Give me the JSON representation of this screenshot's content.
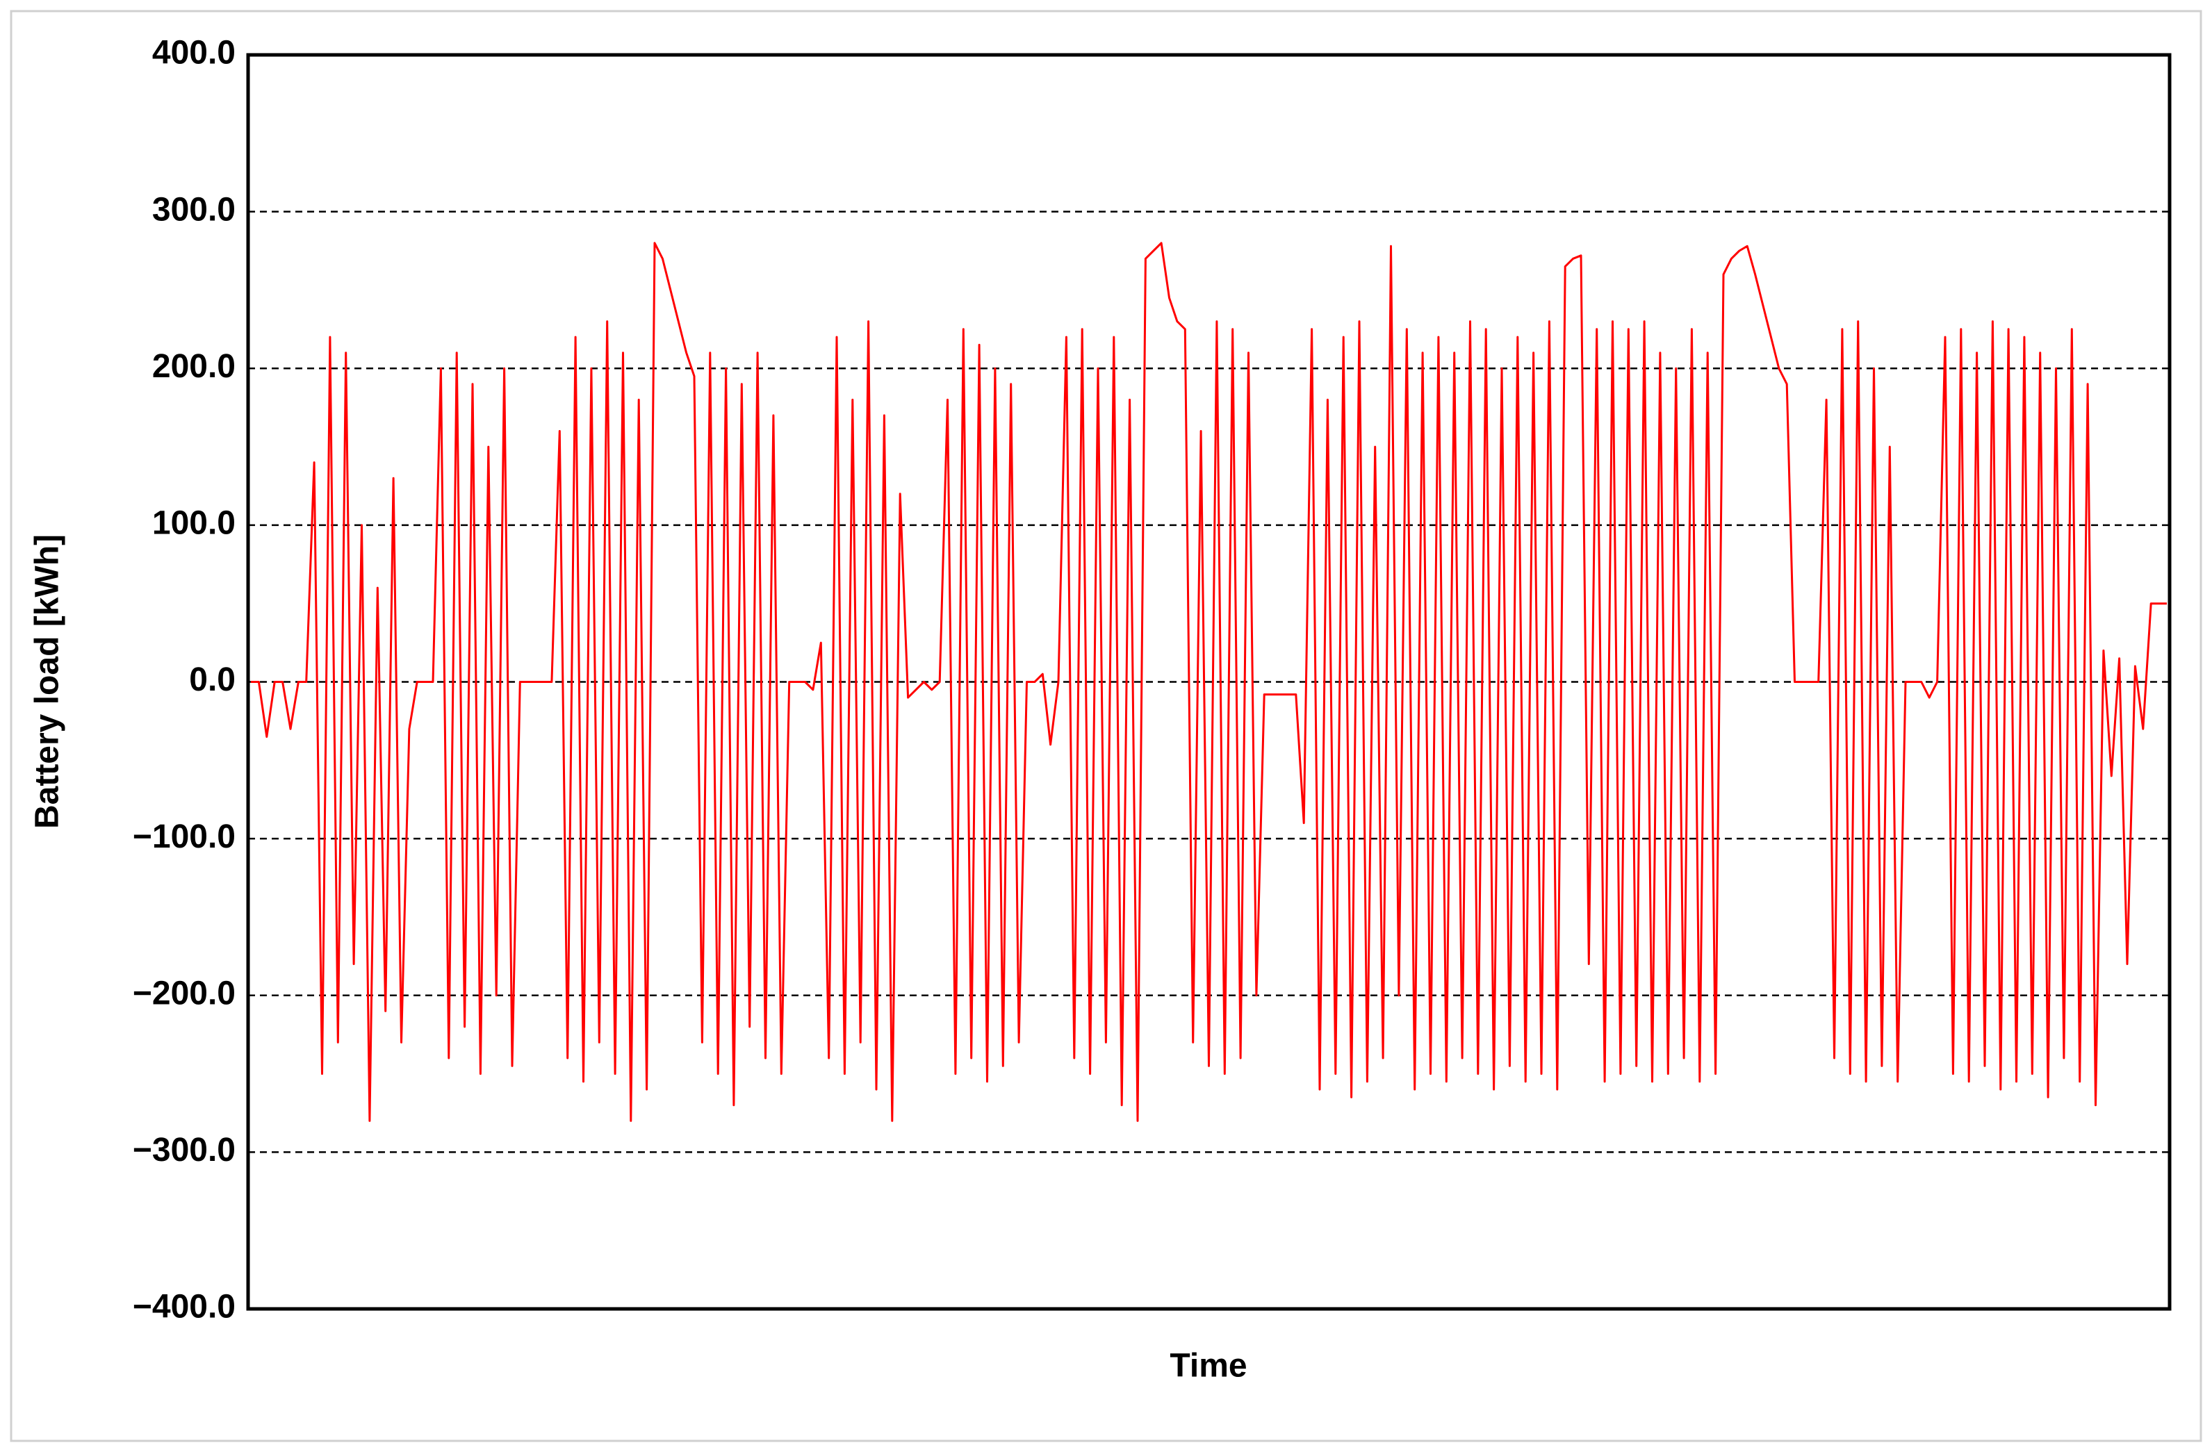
{
  "chart_data": {
    "type": "line",
    "xlabel": "Time",
    "ylabel": "Battery load [kWh]",
    "color": "#ff0000",
    "grid": true,
    "ylim": [
      -400,
      400
    ],
    "yticks": [
      {
        "value": -400,
        "label": "−400.0"
      },
      {
        "value": -300,
        "label": "−300.0"
      },
      {
        "value": -200,
        "label": "−200.0"
      },
      {
        "value": -100,
        "label": "−100.0"
      },
      {
        "value": 0,
        "label": "0.0"
      },
      {
        "value": 100,
        "label": "100.0"
      },
      {
        "value": 200,
        "label": "200.0"
      },
      {
        "value": 300,
        "label": "300.0"
      },
      {
        "value": 400,
        "label": "400.0"
      }
    ],
    "values": [
      0,
      0,
      -35,
      0,
      0,
      -30,
      0,
      0,
      140,
      -250,
      220,
      -230,
      210,
      -180,
      100,
      -280,
      60,
      -210,
      130,
      -230,
      -30,
      0,
      0,
      0,
      200,
      -240,
      210,
      -220,
      190,
      -250,
      150,
      -200,
      200,
      -245,
      0,
      0,
      0,
      0,
      0,
      160,
      -240,
      220,
      -255,
      200,
      -230,
      230,
      -250,
      210,
      -280,
      180,
      -260,
      280,
      270,
      250,
      230,
      210,
      195,
      -230,
      210,
      -250,
      200,
      -270,
      190,
      -220,
      210,
      -240,
      170,
      -250,
      0,
      0,
      0,
      -5,
      25,
      -240,
      220,
      -250,
      180,
      -230,
      230,
      -260,
      170,
      -280,
      120,
      -10,
      -5,
      0,
      -5,
      0,
      180,
      -250,
      225,
      -240,
      215,
      -255,
      200,
      -245,
      190,
      -230,
      0,
      0,
      5,
      -40,
      0,
      220,
      -240,
      225,
      -250,
      200,
      -230,
      220,
      -270,
      180,
      -280,
      270,
      275,
      280,
      245,
      230,
      225,
      -230,
      160,
      -245,
      230,
      -250,
      225,
      -240,
      210,
      -200,
      -8,
      -8,
      -8,
      -8,
      -8,
      -90,
      225,
      -260,
      180,
      -250,
      220,
      -265,
      230,
      -255,
      150,
      -240,
      278,
      -200,
      225,
      -260,
      210,
      -250,
      220,
      -255,
      210,
      -240,
      230,
      -250,
      225,
      -260,
      200,
      -245,
      220,
      -255,
      210,
      -250,
      230,
      -260,
      265,
      270,
      272,
      -180,
      225,
      -255,
      230,
      -250,
      225,
      -245,
      230,
      -255,
      210,
      -250,
      200,
      -240,
      225,
      -255,
      210,
      -250,
      260,
      270,
      275,
      278,
      260,
      240,
      220,
      200,
      190,
      0,
      0,
      0,
      0,
      180,
      -240,
      225,
      -250,
      230,
      -255,
      200,
      -245,
      150,
      -255,
      0,
      0,
      0,
      -10,
      0,
      220,
      -250,
      225,
      -255,
      210,
      -245,
      230,
      -260,
      225,
      -255,
      220,
      -250,
      210,
      -265,
      200,
      -240,
      225,
      -255,
      190,
      -270,
      20,
      -60,
      15,
      -180,
      10,
      -30,
      50,
      50,
      50
    ]
  }
}
